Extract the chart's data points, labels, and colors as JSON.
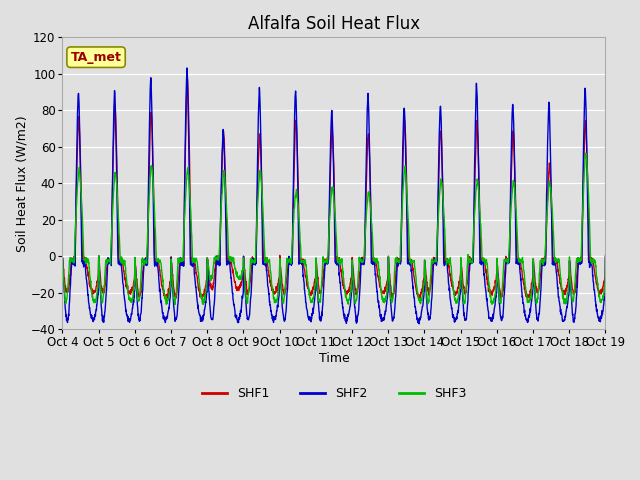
{
  "title": "Alfalfa Soil Heat Flux",
  "xlabel": "Time",
  "ylabel": "Soil Heat Flux (W/m2)",
  "ylim": [
    -40,
    120
  ],
  "yticks": [
    -40,
    -20,
    0,
    20,
    40,
    60,
    80,
    100,
    120
  ],
  "background_color": "#e0e0e0",
  "plot_bg_color": "#e0e0e0",
  "line_colors": {
    "SHF1": "#cc0000",
    "SHF2": "#0000cc",
    "SHF3": "#00bb00"
  },
  "line_widths": {
    "SHF1": 1.0,
    "SHF2": 1.0,
    "SHF3": 1.0
  },
  "annotation_text": "TA_met",
  "annotation_color": "#990000",
  "annotation_bg": "#ffff99",
  "num_days": 15,
  "start_day": 4,
  "legend_entries": [
    "SHF1",
    "SHF2",
    "SHF3"
  ],
  "title_fontsize": 12,
  "label_fontsize": 9,
  "tick_fontsize": 8.5,
  "day_peak_shf1": [
    76,
    83,
    80,
    98,
    68,
    68,
    75,
    70,
    68,
    75,
    70,
    73,
    69,
    50,
    75
  ],
  "day_peak_shf2": [
    91,
    91,
    98,
    104,
    70,
    92,
    91,
    80,
    89,
    83,
    83,
    94,
    84,
    84,
    92
  ],
  "day_peak_shf3": [
    48,
    46,
    50,
    48,
    46,
    47,
    36,
    38,
    35,
    48,
    42,
    42,
    41,
    41,
    57
  ],
  "night_trough_shf1": [
    -20,
    -20,
    -22,
    -22,
    -18,
    -20,
    -20,
    -20,
    -20,
    -22,
    -20,
    -20,
    -22,
    -20,
    -20
  ],
  "night_trough_shf2": [
    -35,
    -35,
    -35,
    -35,
    -35,
    -35,
    -35,
    -35,
    -35,
    -35,
    -35,
    -35,
    -35,
    -35,
    -35
  ],
  "night_trough_shf3": [
    -25,
    -25,
    -25,
    -25,
    -12,
    -25,
    -25,
    -25,
    -25,
    -25,
    -25,
    -25,
    -25,
    -25,
    -25
  ]
}
